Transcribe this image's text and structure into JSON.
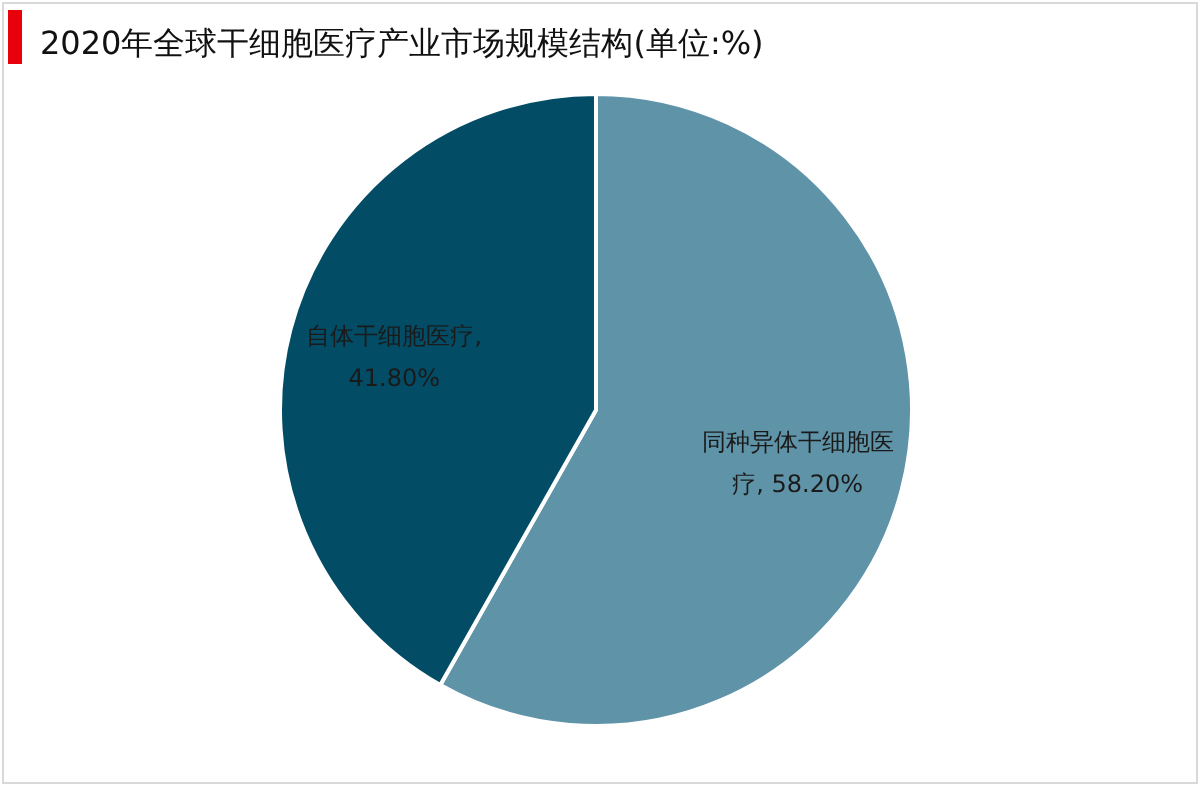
{
  "chart_data": {
    "type": "pie",
    "title": "2020年全球干细胞医疗产业市场规模结构(单位:%)",
    "categories": [
      "同种异体干细胞医疗",
      "自体干细胞医疗"
    ],
    "values": [
      58.2,
      41.8
    ],
    "colors": [
      "#5f93a8",
      "#034c65"
    ],
    "value_labels": [
      ", 58.20%",
      ", 41.80%"
    ],
    "legend": false
  }
}
